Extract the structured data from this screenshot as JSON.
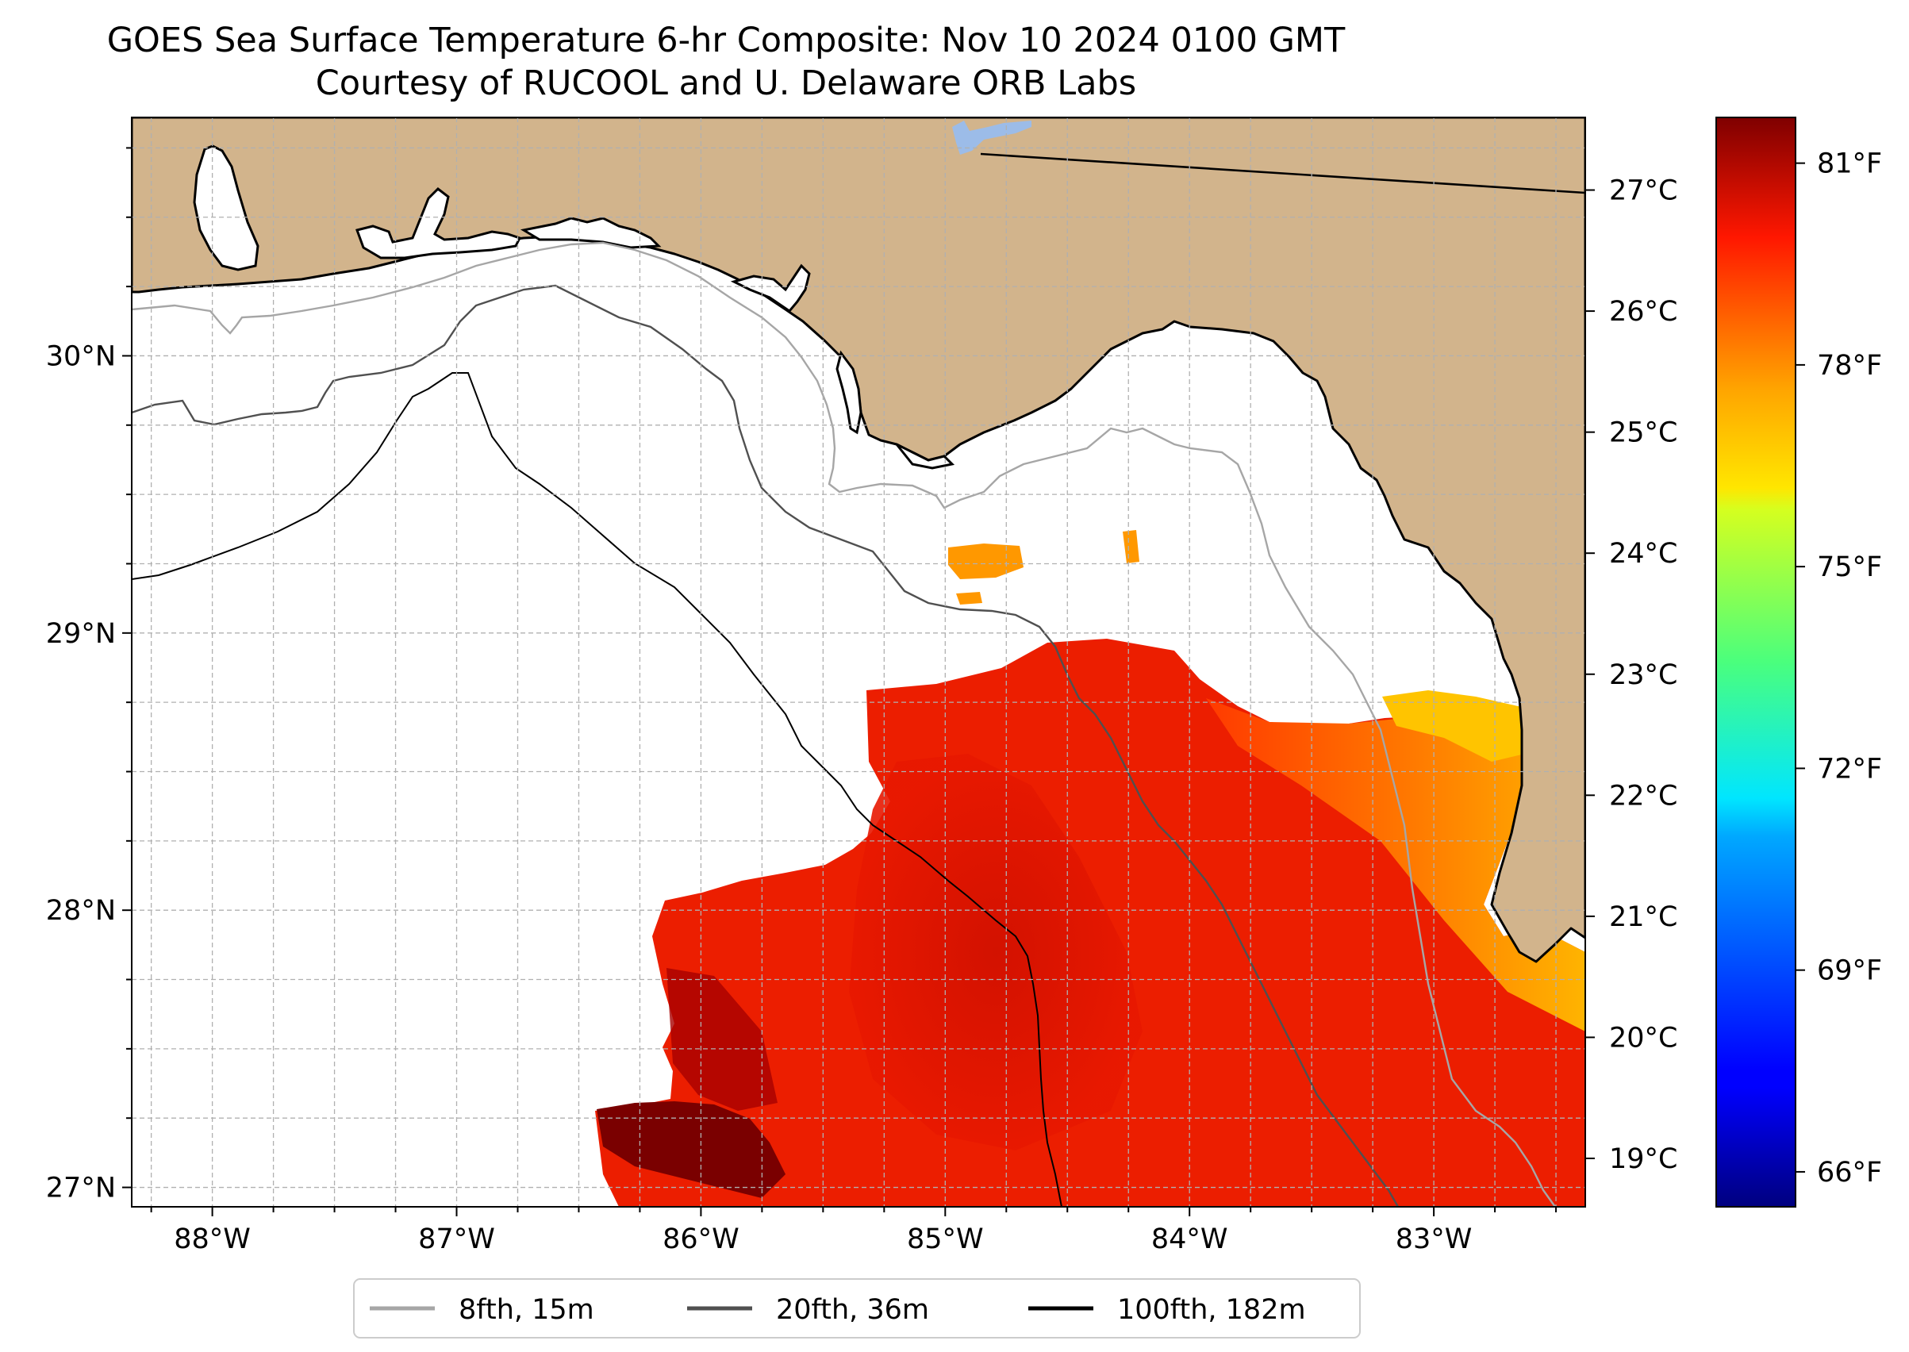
{
  "map": {
    "title": "GOES Sea Surface Temperature 6-hr Composite: Nov 10 2024 0100 GMT",
    "subtitle": "Courtesy of RUCOOL and U. Delaware ORB Labs",
    "lon_range": [
      -88.33,
      -82.38
    ],
    "lat_range": [
      26.93,
      30.86
    ],
    "lon_ticks": [
      {
        "value": -88,
        "label": "88°W"
      },
      {
        "value": -87,
        "label": "87°W"
      },
      {
        "value": -86,
        "label": "86°W"
      },
      {
        "value": -85,
        "label": "85°W"
      },
      {
        "value": -84,
        "label": "84°W"
      },
      {
        "value": -83,
        "label": "83°W"
      }
    ],
    "lat_ticks": [
      {
        "value": 27,
        "label": "27°N"
      },
      {
        "value": 28,
        "label": "28°N"
      },
      {
        "value": 29,
        "label": "29°N"
      },
      {
        "value": 30,
        "label": "30°N"
      }
    ],
    "gridlines": true,
    "colors": {
      "land": "#d2b48c",
      "lake": "#9cbce8",
      "no_data": "#ffffff",
      "coastline": "#000000"
    }
  },
  "colorbar": {
    "colormap": "jet",
    "vmin_c": 18.6,
    "vmax_c": 27.6,
    "celsius_ticks": [
      {
        "value": 19,
        "label": "19°C"
      },
      {
        "value": 20,
        "label": "20°C"
      },
      {
        "value": 21,
        "label": "21°C"
      },
      {
        "value": 22,
        "label": "22°C"
      },
      {
        "value": 23,
        "label": "23°C"
      },
      {
        "value": 24,
        "label": "24°C"
      },
      {
        "value": 25,
        "label": "25°C"
      },
      {
        "value": 26,
        "label": "26°C"
      },
      {
        "value": 27,
        "label": "27°C"
      }
    ],
    "fahrenheit_ticks": [
      {
        "value": 66,
        "label": "66°F"
      },
      {
        "value": 69,
        "label": "69°F"
      },
      {
        "value": 72,
        "label": "72°F"
      },
      {
        "value": 75,
        "label": "75°F"
      },
      {
        "value": 78,
        "label": "78°F"
      },
      {
        "value": 81,
        "label": "81°F"
      }
    ]
  },
  "legend": {
    "placement": "bottom-center",
    "items": [
      {
        "label": "8fth, 15m",
        "color": "#a6a6a6"
      },
      {
        "label": "20fth, 36m",
        "color": "#505050"
      },
      {
        "label": "100fth, 182m",
        "color": "#000000"
      }
    ]
  }
}
